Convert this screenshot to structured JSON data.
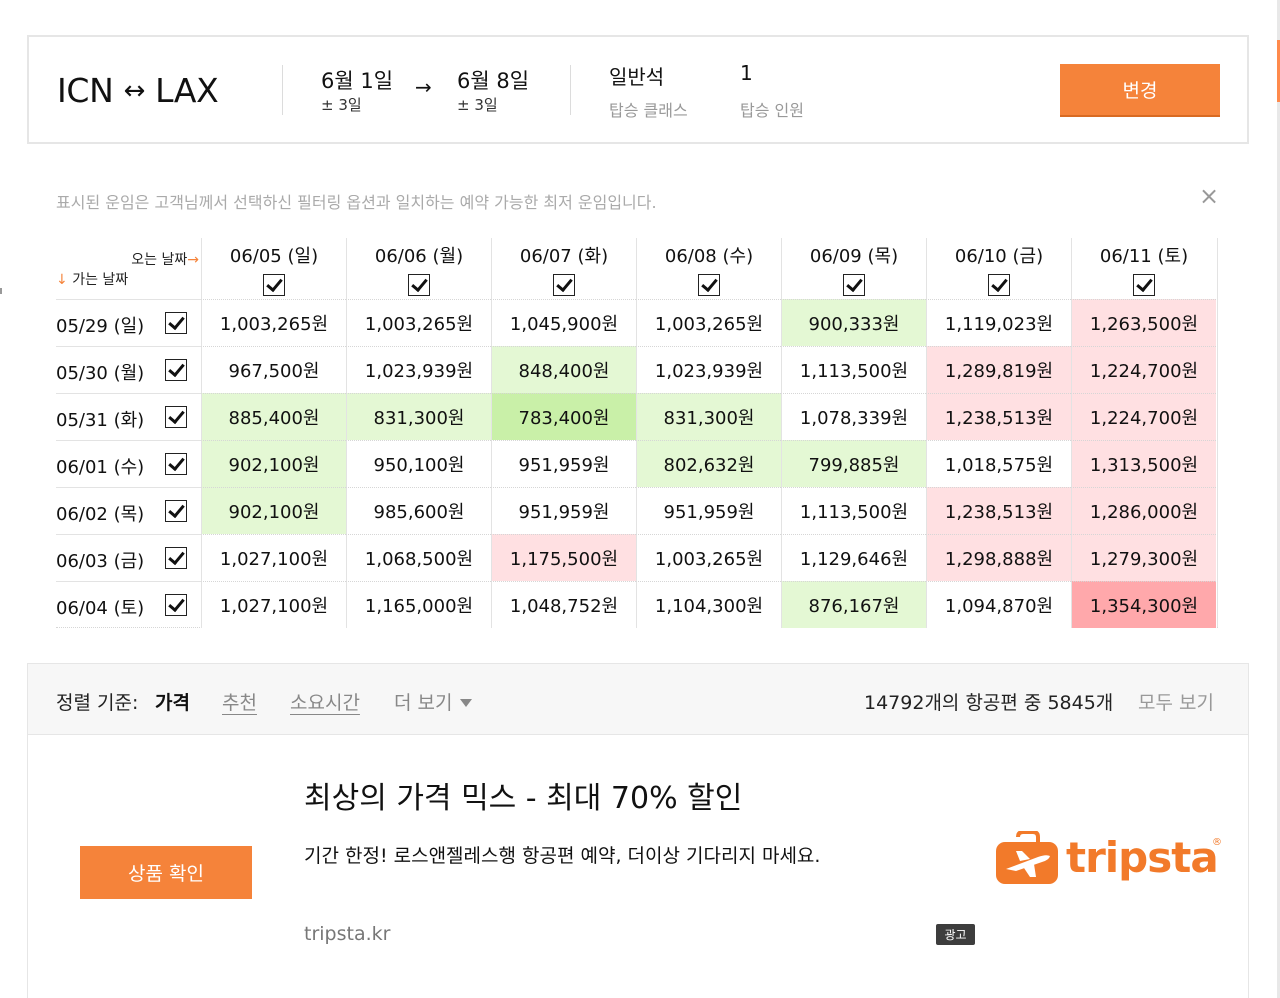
{
  "search": {
    "origin": "ICN",
    "destination": "LAX",
    "route_arrow": "↔",
    "depart_date": "6월 1일",
    "depart_flex": "± 3일",
    "return_date": "6월 8일",
    "return_flex": "± 3일",
    "date_arrow": "→",
    "cabin_value": "일반석",
    "cabin_label": "탑승 클래스",
    "pax_value": "1",
    "pax_label": "탑승 인원",
    "change_label": "변경"
  },
  "notice": {
    "text": "표시된 운임은 고객님께서 선택하신 필터링 옵션과 일치하는 예약 가능한 최저 운임입니다.",
    "close_icon": "×"
  },
  "matrix": {
    "corner_return": "오는 날짜",
    "corner_return_arrow": "→",
    "corner_depart_arrow": "↓",
    "corner_depart": "가는 날짜",
    "columns": [
      "06/05 (일)",
      "06/06 (월)",
      "06/07 (화)",
      "06/08 (수)",
      "06/09 (목)",
      "06/10 (금)",
      "06/11 (토)"
    ],
    "rows": [
      {
        "date": "05/29 (일)",
        "prices": [
          "1,003,265원",
          "1,003,265원",
          "1,045,900원",
          "1,003,265원",
          "900,333원",
          "1,119,023원",
          "1,263,500원"
        ],
        "levels": [
          "n",
          "n",
          "n",
          "n",
          "g",
          "n",
          "r"
        ]
      },
      {
        "date": "05/30 (월)",
        "prices": [
          "967,500원",
          "1,023,939원",
          "848,400원",
          "1,023,939원",
          "1,113,500원",
          "1,289,819원",
          "1,224,700원"
        ],
        "levels": [
          "n",
          "n",
          "g",
          "n",
          "n",
          "r",
          "r"
        ]
      },
      {
        "date": "05/31 (화)",
        "prices": [
          "885,400원",
          "831,300원",
          "783,400원",
          "831,300원",
          "1,078,339원",
          "1,238,513원",
          "1,224,700원"
        ],
        "levels": [
          "g",
          "g",
          "G",
          "g",
          "n",
          "r",
          "r"
        ]
      },
      {
        "date": "06/01 (수)",
        "prices": [
          "902,100원",
          "950,100원",
          "951,959원",
          "802,632원",
          "799,885원",
          "1,018,575원",
          "1,313,500원"
        ],
        "levels": [
          "g",
          "n",
          "n",
          "g",
          "g",
          "n",
          "r"
        ]
      },
      {
        "date": "06/02 (목)",
        "prices": [
          "902,100원",
          "985,600원",
          "951,959원",
          "951,959원",
          "1,113,500원",
          "1,238,513원",
          "1,286,000원"
        ],
        "levels": [
          "g",
          "n",
          "n",
          "n",
          "n",
          "r",
          "r"
        ]
      },
      {
        "date": "06/03 (금)",
        "prices": [
          "1,027,100원",
          "1,068,500원",
          "1,175,500원",
          "1,003,265원",
          "1,129,646원",
          "1,298,888원",
          "1,279,300원"
        ],
        "levels": [
          "n",
          "n",
          "r",
          "n",
          "n",
          "r",
          "r"
        ]
      },
      {
        "date": "06/04 (토)",
        "prices": [
          "1,027,100원",
          "1,165,000원",
          "1,048,752원",
          "1,104,300원",
          "876,167원",
          "1,094,870원",
          "1,354,300원"
        ],
        "levels": [
          "n",
          "n",
          "n",
          "n",
          "g",
          "n",
          "R"
        ]
      }
    ],
    "level_colors": {
      "n": "#ffffff",
      "g": "#e4f8d4",
      "G": "#c9f0a8",
      "r": "#ffe0e2",
      "R": "#ffa8ab"
    }
  },
  "sort": {
    "label": "정렬 기준:",
    "active": "가격",
    "recommend": "추천",
    "duration": "소요시간",
    "more": "더 보기",
    "count": "14792개의 항공편 중 5845개",
    "show_all": "모두 보기"
  },
  "ad": {
    "button_label": "상품 확인",
    "title": "최상의 가격 믹스 - 최대 70% 할인",
    "description": "기간 한정! 로스앤젤레스행 항공편 예약, 더이상 기다리지 마세요.",
    "url": "tripsta.kr",
    "badge": "광고",
    "brand_name": "tripsta",
    "brand_reg": "®",
    "brand_color": "#f27a2a"
  }
}
